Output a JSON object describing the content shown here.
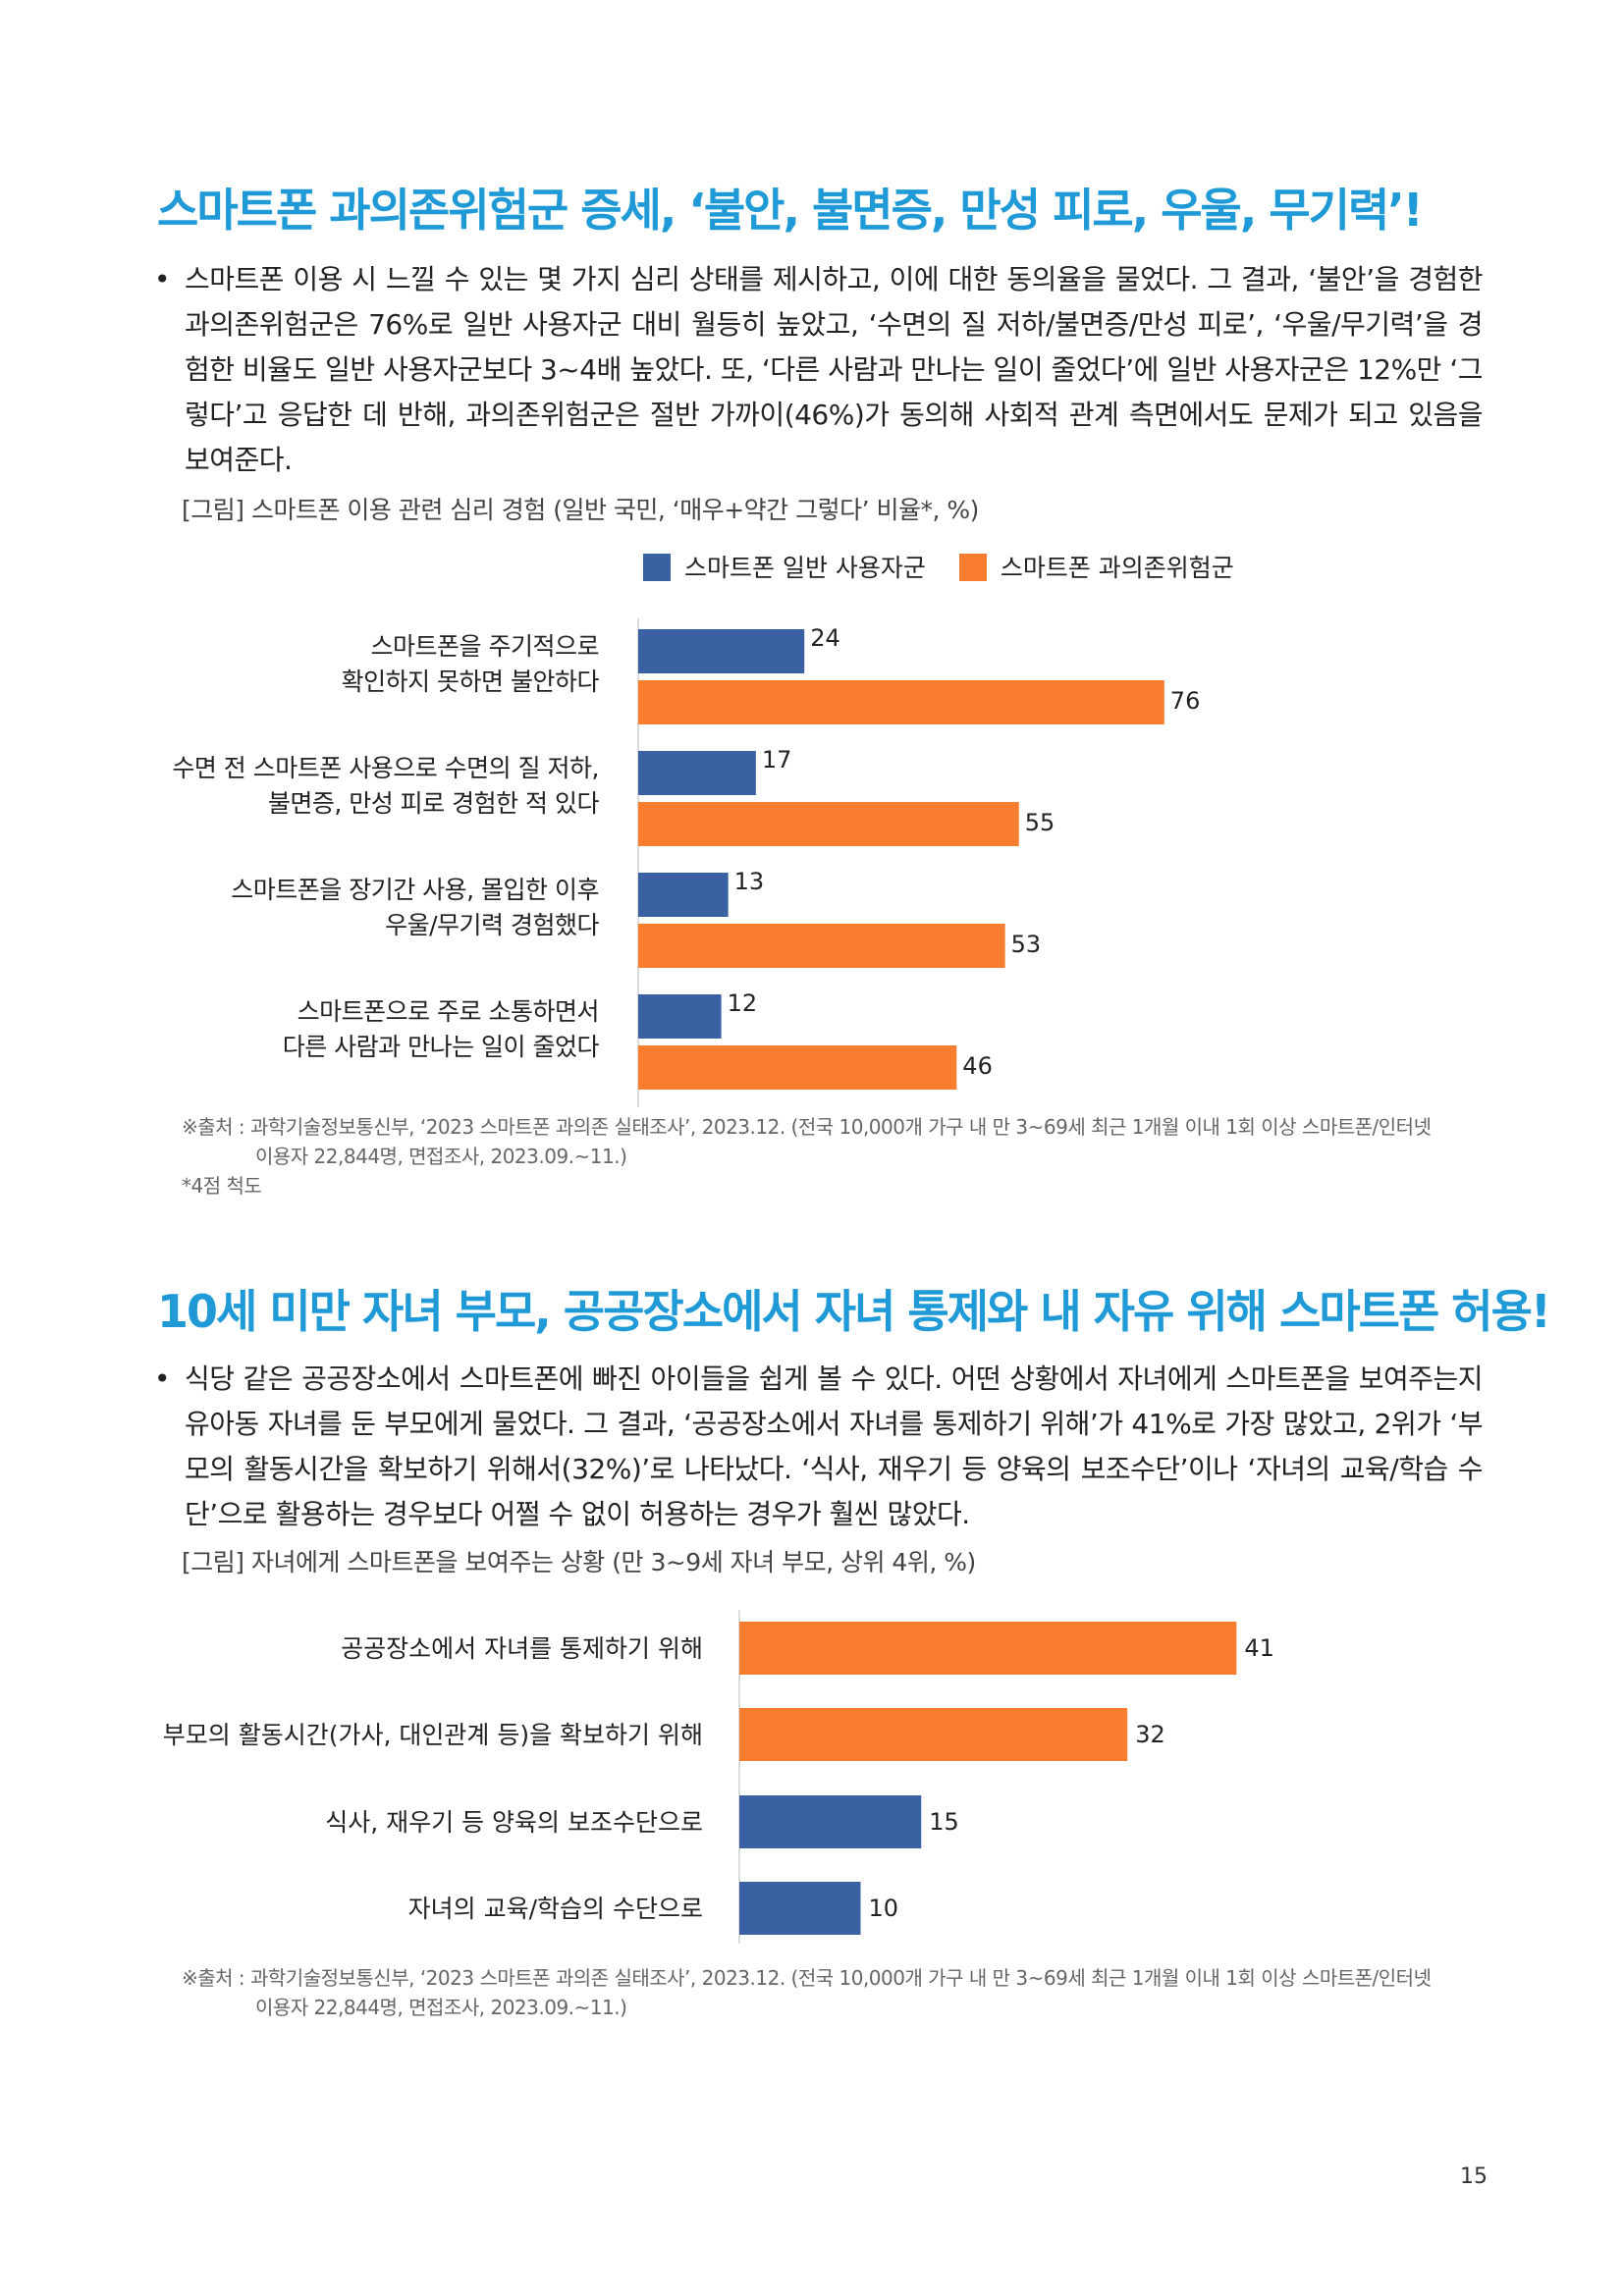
{
  "colors": {
    "heading": "#1f9ad6",
    "general_users": "#3a62a3",
    "overdependent": "#f97d2f"
  },
  "section1": {
    "title": "스마트폰 과의존위험군 증세, ‘불안, 불면증, 만성 피로, 우울, 무기력’!",
    "bullet": "•",
    "paragraph": "스마트폰 이용 시 느낄 수 있는 몇 가지 심리 상태를 제시하고, 이에 대한 동의율을 물었다. 그 결과, ‘불안’을 경험한 과의존위험군은 76%로 일반 사용자군 대비 월등히 높았고, ‘수면의 질 저하/불면증/만성 피로’, ‘우울/무기력’을 경험한 비율도 일반 사용자군보다 3~4배 높았다. 또, ‘다른 사람과 만나는 일이 줄었다’에 일반 사용자군은 12%만 ‘그렇다’고 응답한 데 반해, 과의존위험군은 절반 가까이(46%)가 동의해 사회적 관계 측면에서도 문제가 되고 있음을 보여준다.",
    "figure_caption": "[그림] 스마트폰 이용 관련 심리 경험 (일반 국민, ‘매우+약간 그렇다’ 비율*, %)",
    "source_line1": "※출처 : 과학기술정보통신부, ‘2023 스마트폰 과의존 실태조사’, 2023.12. (전국 10,000개 가구 내 만 3~69세 최근 1개월 이내 1회 이상 스마트폰/인터넷",
    "source_line2": "이용자 22,844명, 면접조사, 2023.09.~11.)",
    "footnote": "*4점 척도"
  },
  "section2": {
    "title": "10세 미만 자녀 부모, 공공장소에서 자녀 통제와 내 자유 위해 스마트폰 허용!",
    "bullet": "•",
    "paragraph": "식당 같은 공공장소에서 스마트폰에 빠진 아이들을 쉽게 볼 수 있다. 어떤 상황에서 자녀에게 스마트폰을 보여주는지 유아동 자녀를 둔 부모에게 물었다. 그 결과, ‘공공장소에서 자녀를 통제하기 위해’가 41%로 가장 많았고, 2위가 ‘부모의 활동시간을 확보하기 위해서(32%)’로 나타났다. ‘식사, 재우기 등 양육의 보조수단’이나 ‘자녀의 교육/학습 수단’으로 활용하는 경우보다 어쩔 수 없이 허용하는 경우가 훨씬 많았다.",
    "figure_caption": "[그림] 자녀에게 스마트폰을 보여주는 상황 (만 3~9세 자녀 부모, 상위 4위, %)",
    "source_line1": "※출처 : 과학기술정보통신부, ‘2023 스마트폰 과의존 실태조사’, 2023.12. (전국 10,000개 가구 내 만 3~69세 최근 1개월 이내 1회 이상 스마트폰/인터넷",
    "source_line2": "이용자 22,844명, 면접조사, 2023.09.~11.)"
  },
  "page_number": "15",
  "chart_data": [
    {
      "type": "bar",
      "orientation": "horizontal",
      "title": "[그림] 스마트폰 이용 관련 심리 경험 (일반 국민, ‘매우+약간 그렇다’ 비율*, %)",
      "categories": [
        [
          "스마트폰을 주기적으로",
          "확인하지 못하면 불안하다"
        ],
        [
          "수면 전 스마트폰 사용으로 수면의 질 저하,",
          "불면증, 만성 피로 경험한 적 있다"
        ],
        [
          "스마트폰을 장기간 사용, 몰입한 이후",
          "우울/무기력 경험했다"
        ],
        [
          "스마트폰으로 주로 소통하면서",
          "다른 사람과 만나는 일이 줄었다"
        ]
      ],
      "series": [
        {
          "name": "스마트폰 일반 사용자군",
          "color": "#3a62a3",
          "values": [
            24,
            17,
            13,
            12
          ]
        },
        {
          "name": "스마트폰 과의존위험군",
          "color": "#f97d2f",
          "values": [
            76,
            55,
            53,
            46
          ]
        }
      ],
      "xlim": [
        0,
        100
      ],
      "legend": "top"
    },
    {
      "type": "bar",
      "orientation": "horizontal",
      "title": "[그림] 자녀에게 스마트폰을 보여주는 상황 (만 3~9세 자녀 부모, 상위 4위, %)",
      "categories": [
        "공공장소에서 자녀를 통제하기 위해",
        "부모의 활동시간(가사, 대인관계 등)을 확보하기 위해",
        "식사, 재우기 등 양육의 보조수단으로",
        "자녀의 교육/학습의 수단으로"
      ],
      "values": [
        41,
        32,
        15,
        10
      ],
      "colors": [
        "#f97d2f",
        "#f97d2f",
        "#3a62a3",
        "#3a62a3"
      ],
      "xlim": [
        0,
        100
      ]
    }
  ]
}
